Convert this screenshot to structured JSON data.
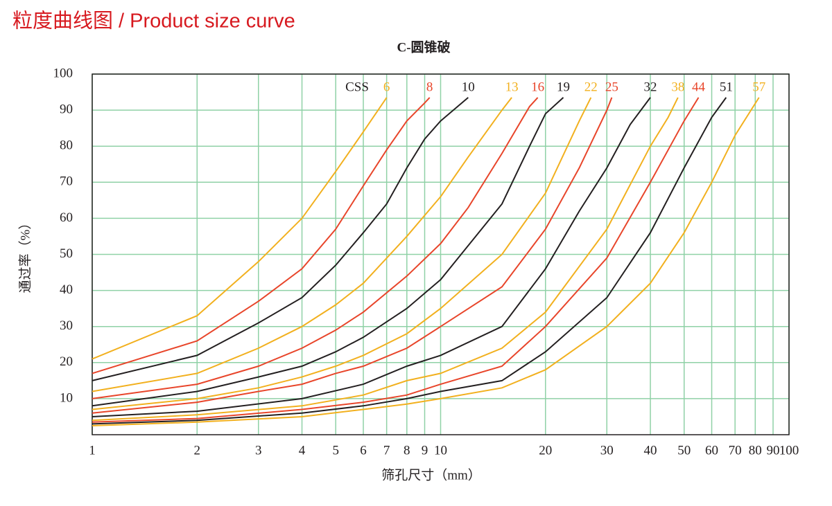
{
  "header": {
    "title": "粒度曲线图 / Product size curve"
  },
  "chart_data": {
    "type": "line",
    "title": "C-圆锥破",
    "xlabel": "筛孔尺寸（mm）",
    "ylabel": "通过率（%）",
    "xscale": "log",
    "xlim": [
      1,
      100
    ],
    "ylim": [
      0,
      100
    ],
    "xticks": [
      1,
      2,
      3,
      4,
      5,
      6,
      7,
      8,
      9,
      10,
      20,
      30,
      40,
      50,
      60,
      70,
      80,
      90,
      100
    ],
    "yticks": [
      10,
      20,
      30,
      40,
      50,
      60,
      70,
      80,
      90,
      100
    ],
    "grid": true,
    "grid_color": "#8fd1a6",
    "legend_title": "CSS",
    "series": [
      {
        "name": "6",
        "color": "#f2b01e",
        "x": [
          1,
          2,
          3,
          4,
          5,
          6,
          7
        ],
        "values": [
          21,
          33,
          48,
          60,
          73,
          84,
          93.5
        ]
      },
      {
        "name": "8",
        "color": "#e8452a",
        "x": [
          1,
          2,
          3,
          4,
          5,
          6,
          7,
          8,
          9,
          9.3
        ],
        "values": [
          17,
          26,
          37,
          46,
          57,
          69,
          79,
          87,
          92,
          93.5
        ]
      },
      {
        "name": "10",
        "color": "#231f20",
        "x": [
          1,
          2,
          3,
          4,
          5,
          6,
          7,
          8,
          9,
          10,
          12
        ],
        "values": [
          15,
          22,
          31,
          38,
          47,
          56,
          64,
          74,
          82,
          87,
          93.5
        ]
      },
      {
        "name": "13",
        "color": "#f2b01e",
        "x": [
          1,
          2,
          3,
          4,
          5,
          6,
          8,
          10,
          12,
          15,
          16
        ],
        "values": [
          12,
          17,
          24,
          30,
          36,
          42,
          55,
          66,
          77,
          90,
          93.5
        ]
      },
      {
        "name": "16",
        "color": "#e8452a",
        "x": [
          1,
          2,
          3,
          4,
          5,
          6,
          8,
          10,
          12,
          15,
          18,
          19
        ],
        "values": [
          10,
          14,
          19,
          24,
          29,
          34,
          44,
          53,
          63,
          78,
          91,
          93.5
        ]
      },
      {
        "name": "19",
        "color": "#231f20",
        "x": [
          1,
          2,
          3,
          4,
          5,
          6,
          8,
          10,
          15,
          18,
          20,
          22.5
        ],
        "values": [
          8,
          12,
          16,
          19,
          23,
          27,
          35,
          43,
          64,
          80,
          89,
          93.5
        ]
      },
      {
        "name": "22",
        "color": "#f2b01e",
        "x": [
          1,
          2,
          3,
          4,
          5,
          6,
          8,
          10,
          15,
          20,
          25,
          27
        ],
        "values": [
          7,
          10,
          13,
          16,
          19,
          22,
          28,
          35,
          50,
          67,
          87,
          93.5
        ]
      },
      {
        "name": "25",
        "color": "#e8452a",
        "x": [
          1,
          2,
          3,
          4,
          5,
          6,
          8,
          10,
          15,
          20,
          25,
          30,
          31
        ],
        "values": [
          6,
          9,
          12,
          14,
          17,
          19,
          24,
          30,
          41,
          57,
          74,
          90,
          93.5
        ]
      },
      {
        "name": "32",
        "color": "#231f20",
        "x": [
          1,
          2,
          4,
          6,
          8,
          10,
          15,
          20,
          25,
          30,
          35,
          40
        ],
        "values": [
          5,
          6.5,
          10,
          14,
          19,
          22,
          30,
          46,
          62,
          74,
          86,
          93.5
        ]
      },
      {
        "name": "38",
        "color": "#f2b01e",
        "x": [
          1,
          2,
          4,
          6,
          8,
          10,
          15,
          20,
          30,
          40,
          45,
          48
        ],
        "values": [
          4,
          5.5,
          8,
          11,
          15,
          17,
          24,
          34,
          57,
          80,
          88,
          93.5
        ]
      },
      {
        "name": "44",
        "color": "#e8452a",
        "x": [
          1,
          2,
          4,
          6,
          8,
          10,
          15,
          20,
          30,
          40,
          50,
          55
        ],
        "values": [
          3.5,
          4.5,
          7,
          9,
          11,
          14,
          19,
          30,
          49,
          70,
          87,
          93.5
        ]
      },
      {
        "name": "51",
        "color": "#231f20",
        "x": [
          1,
          2,
          4,
          6,
          8,
          10,
          15,
          20,
          30,
          40,
          50,
          60,
          66
        ],
        "values": [
          3,
          4,
          6,
          8,
          10,
          12,
          15,
          23,
          38,
          56,
          74,
          88,
          93.5
        ]
      },
      {
        "name": "57",
        "color": "#f2b01e",
        "x": [
          1,
          2,
          4,
          6,
          8,
          10,
          15,
          20,
          30,
          40,
          50,
          60,
          70,
          82
        ],
        "values": [
          2.5,
          3.5,
          5,
          7,
          8.5,
          10,
          13,
          18,
          30,
          42,
          56,
          70,
          83,
          93.5
        ]
      }
    ]
  }
}
